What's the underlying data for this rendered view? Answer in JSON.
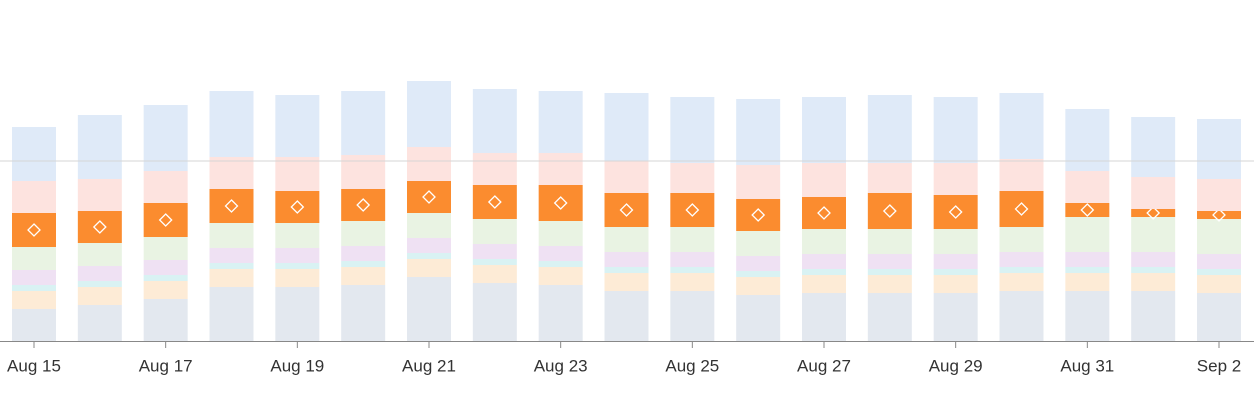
{
  "chart_data": {
    "type": "stacked-bar",
    "categories": [
      "Aug 15",
      null,
      "Aug 17",
      null,
      "Aug 19",
      null,
      "Aug 21",
      null,
      "Aug 23",
      null,
      "Aug 25",
      null,
      "Aug 27",
      null,
      "Aug 29",
      null,
      "Aug 31",
      null,
      "Sep 2"
    ],
    "series": [
      {
        "color": "#e3e8ef",
        "values": [
          32,
          36,
          42,
          54,
          54,
          56,
          64,
          58,
          56,
          50,
          50,
          46,
          48,
          48,
          48,
          50,
          50,
          50,
          48
        ]
      },
      {
        "color": "#fdebd6",
        "values": [
          18,
          18,
          18,
          18,
          18,
          18,
          18,
          18,
          18,
          18,
          18,
          18,
          18,
          18,
          18,
          18,
          18,
          18,
          18
        ]
      },
      {
        "color": "#d9f2f3",
        "values": [
          6,
          6,
          6,
          6,
          6,
          6,
          6,
          6,
          6,
          6,
          6,
          6,
          6,
          6,
          6,
          6,
          6,
          6,
          6
        ]
      },
      {
        "color": "#efe1f3",
        "values": [
          15,
          15,
          15,
          15,
          15,
          15,
          15,
          15,
          15,
          15,
          15,
          15,
          15,
          15,
          15,
          15,
          15,
          15,
          15
        ]
      },
      {
        "color": "#e9f3e3",
        "values": [
          23,
          23,
          23,
          25,
          25,
          25,
          25,
          25,
          25,
          25,
          25,
          25,
          25,
          25,
          25,
          25,
          35,
          35,
          35
        ]
      },
      {
        "color": "#fb8c2f",
        "highlight": true,
        "values": [
          34,
          32,
          34,
          34,
          32,
          32,
          32,
          34,
          36,
          34,
          34,
          32,
          32,
          36,
          34,
          36,
          14,
          8,
          8
        ]
      },
      {
        "color": "#fde3df",
        "values": [
          32,
          32,
          32,
          32,
          34,
          34,
          34,
          32,
          32,
          32,
          30,
          34,
          34,
          30,
          32,
          32,
          32,
          32,
          32
        ]
      },
      {
        "color": "#dfeaf8",
        "values": [
          54,
          64,
          66,
          66,
          62,
          64,
          66,
          64,
          62,
          68,
          66,
          66,
          66,
          68,
          66,
          66,
          62,
          60,
          60
        ]
      }
    ],
    "ylim": [
      0,
      270
    ],
    "grid_lines": [
      180
    ]
  }
}
